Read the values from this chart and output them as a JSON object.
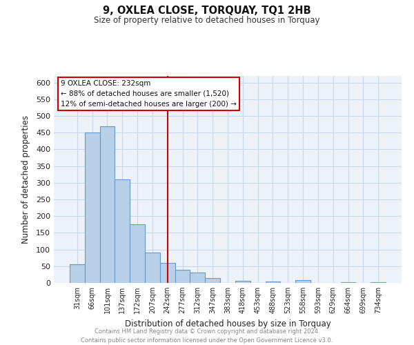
{
  "title": "9, OXLEA CLOSE, TORQUAY, TQ1 2HB",
  "subtitle": "Size of property relative to detached houses in Torquay",
  "xlabel": "Distribution of detached houses by size in Torquay",
  "ylabel": "Number of detached properties",
  "footer_line1": "Contains HM Land Registry data © Crown copyright and database right 2024.",
  "footer_line2": "Contains public sector information licensed under the Open Government Licence v3.0.",
  "bar_labels": [
    "31sqm",
    "66sqm",
    "101sqm",
    "137sqm",
    "172sqm",
    "207sqm",
    "242sqm",
    "277sqm",
    "312sqm",
    "347sqm",
    "383sqm",
    "418sqm",
    "453sqm",
    "488sqm",
    "523sqm",
    "558sqm",
    "593sqm",
    "629sqm",
    "664sqm",
    "699sqm",
    "734sqm"
  ],
  "bar_values": [
    55,
    450,
    470,
    310,
    175,
    90,
    60,
    40,
    32,
    15,
    0,
    7,
    1,
    5,
    0,
    8,
    0,
    0,
    2,
    0,
    2
  ],
  "bar_color": "#b8d0e8",
  "bar_edge_color": "#6699cc",
  "ylim": [
    0,
    620
  ],
  "yticks": [
    0,
    50,
    100,
    150,
    200,
    250,
    300,
    350,
    400,
    450,
    500,
    550,
    600
  ],
  "property_line_x": 6.0,
  "property_line_label": "9 OXLEA CLOSE: 232sqm",
  "annotation_line1": "← 88% of detached houses are smaller (1,520)",
  "annotation_line2": "12% of semi-detached houses are larger (200) →",
  "grid_color": "#c8d8e8",
  "background_color": "#edf2f8"
}
